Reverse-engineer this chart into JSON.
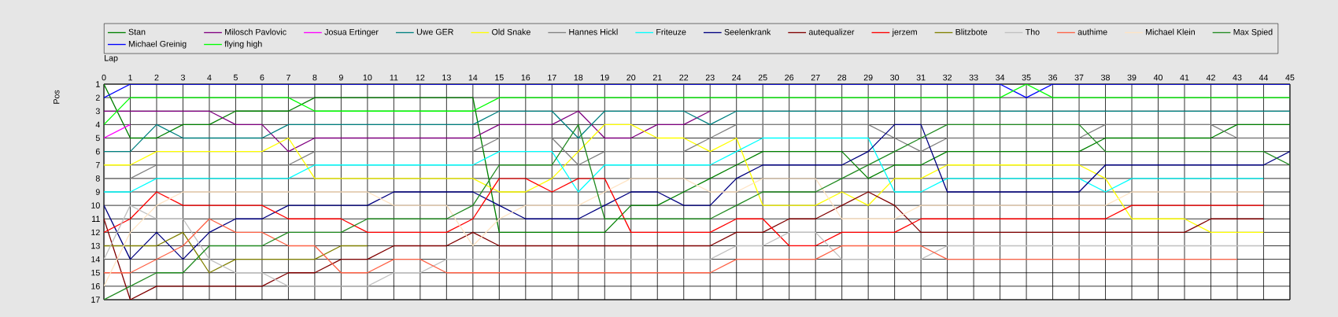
{
  "chart_data": {
    "type": "line",
    "xlabel": "Lap",
    "ylabel": "Pos",
    "x": [
      0,
      1,
      2,
      3,
      4,
      5,
      6,
      7,
      8,
      9,
      10,
      11,
      12,
      13,
      14,
      15,
      16,
      17,
      18,
      19,
      20,
      21,
      22,
      23,
      24,
      25,
      26,
      27,
      28,
      29,
      30,
      31,
      32,
      33,
      34,
      35,
      36,
      37,
      38,
      39,
      40,
      41,
      42,
      43,
      44,
      45
    ],
    "xlim": [
      0,
      45
    ],
    "xticks": [
      0,
      1,
      2,
      3,
      4,
      5,
      6,
      7,
      8,
      9,
      10,
      11,
      12,
      13,
      14,
      15,
      16,
      17,
      18,
      19,
      20,
      21,
      22,
      23,
      24,
      25,
      26,
      27,
      28,
      29,
      30,
      31,
      32,
      33,
      34,
      35,
      36,
      37,
      38,
      39,
      40,
      41,
      42,
      43,
      44,
      45
    ],
    "ylim": [
      17,
      1
    ],
    "yticks": [
      1,
      2,
      3,
      4,
      5,
      6,
      7,
      8,
      9,
      10,
      11,
      12,
      13,
      14,
      15,
      16,
      17
    ],
    "grid": true,
    "legend": "top",
    "series": [
      {
        "name": "Stan",
        "color": "#008000",
        "values": [
          1,
          5,
          5,
          4,
          4,
          3,
          3,
          3,
          2,
          2,
          2,
          2,
          2,
          2,
          2,
          12,
          12,
          12,
          12,
          12,
          10,
          10,
          9,
          8,
          7,
          6,
          6,
          6,
          6,
          8,
          7,
          7,
          6,
          6,
          6,
          6,
          6,
          6,
          5,
          5,
          5,
          5,
          5,
          4,
          4,
          4
        ]
      },
      {
        "name": "Milosch Pavlovic",
        "color": "#800080",
        "values": [
          3,
          3,
          3,
          3,
          3,
          4,
          4,
          6,
          5,
          5,
          5,
          5,
          5,
          5,
          5,
          4,
          4,
          4,
          3,
          5,
          5,
          4,
          4,
          3,
          null,
          null,
          null,
          null,
          null,
          null,
          null,
          null,
          null,
          null,
          null,
          null,
          null,
          null,
          null,
          null,
          null,
          null,
          null,
          null,
          null,
          null
        ]
      },
      {
        "name": "Josua Ertinger",
        "color": "#ff00ff",
        "values": [
          5,
          4,
          null,
          null,
          null,
          null,
          null,
          null,
          null,
          null,
          null,
          null,
          null,
          null,
          null,
          null,
          null,
          null,
          null,
          null,
          null,
          null,
          null,
          null,
          null,
          null,
          null,
          null,
          null,
          null,
          null,
          null,
          null,
          null,
          null,
          null,
          null,
          null,
          null,
          null,
          null,
          null,
          null,
          null,
          null,
          null
        ]
      },
      {
        "name": "Uwe GER",
        "color": "#008080",
        "values": [
          6,
          6,
          4,
          5,
          5,
          5,
          5,
          4,
          4,
          4,
          4,
          4,
          4,
          4,
          4,
          3,
          3,
          3,
          5,
          3,
          3,
          3,
          3,
          4,
          3,
          3,
          3,
          3,
          3,
          3,
          3,
          3,
          3,
          3,
          3,
          3,
          3,
          3,
          3,
          3,
          3,
          3,
          3,
          3,
          3,
          3
        ]
      },
      {
        "name": "Old Snake",
        "color": "#ffff00",
        "values": [
          7,
          7,
          6,
          6,
          6,
          6,
          6,
          5,
          8,
          8,
          8,
          8,
          8,
          8,
          8,
          9,
          9,
          8,
          6,
          4,
          4,
          5,
          5,
          6,
          5,
          10,
          10,
          10,
          9,
          10,
          8,
          8,
          7,
          7,
          7,
          7,
          7,
          7,
          8,
          11,
          11,
          11,
          12,
          12,
          12,
          null
        ]
      },
      {
        "name": "Hannes Hickl",
        "color": "#808080",
        "values": [
          8,
          8,
          7,
          7,
          7,
          7,
          7,
          7,
          6,
          6,
          6,
          6,
          6,
          6,
          6,
          5,
          5,
          5,
          7,
          6,
          6,
          6,
          6,
          5,
          4,
          4,
          4,
          4,
          4,
          4,
          5,
          6,
          5,
          5,
          5,
          5,
          5,
          5,
          4,
          4,
          4,
          4,
          4,
          5,
          5,
          5
        ]
      },
      {
        "name": "Friteuze",
        "color": "#00ffff",
        "values": [
          9,
          9,
          8,
          8,
          8,
          8,
          8,
          8,
          7,
          7,
          7,
          7,
          7,
          7,
          7,
          6,
          6,
          6,
          9,
          7,
          7,
          7,
          7,
          7,
          6,
          5,
          5,
          5,
          5,
          5,
          9,
          9,
          8,
          8,
          8,
          8,
          8,
          8,
          9,
          8,
          8,
          8,
          8,
          8,
          8,
          null
        ]
      },
      {
        "name": "Seelenkrank",
        "color": "#000080",
        "values": [
          10,
          14,
          12,
          14,
          12,
          11,
          11,
          10,
          10,
          10,
          10,
          9,
          9,
          9,
          9,
          10,
          11,
          11,
          11,
          10,
          9,
          9,
          10,
          10,
          8,
          7,
          7,
          7,
          7,
          6,
          4,
          4,
          9,
          9,
          9,
          9,
          9,
          9,
          7,
          7,
          7,
          7,
          7,
          7,
          7,
          6
        ]
      },
      {
        "name": "autequalizer",
        "color": "#800000",
        "values": [
          11,
          17,
          16,
          16,
          16,
          16,
          16,
          15,
          15,
          14,
          14,
          13,
          13,
          13,
          12,
          13,
          13,
          13,
          13,
          13,
          13,
          13,
          13,
          13,
          12,
          12,
          11,
          11,
          10,
          9,
          10,
          12,
          12,
          12,
          12,
          12,
          12,
          12,
          12,
          12,
          12,
          12,
          11,
          11,
          11,
          null
        ]
      },
      {
        "name": "jerzem",
        "color": "#ff0000",
        "values": [
          12,
          11,
          9,
          10,
          10,
          10,
          10,
          11,
          11,
          11,
          12,
          12,
          12,
          12,
          11,
          8,
          8,
          9,
          8,
          8,
          12,
          12,
          12,
          12,
          11,
          11,
          13,
          13,
          12,
          12,
          12,
          11,
          11,
          11,
          11,
          11,
          11,
          11,
          11,
          10,
          10,
          10,
          10,
          10,
          10,
          null
        ]
      },
      {
        "name": "Blitzbote",
        "color": "#808000",
        "values": [
          13,
          13,
          13,
          12,
          15,
          14,
          14,
          14,
          14,
          13,
          13,
          null,
          null,
          null,
          null,
          null,
          null,
          null,
          null,
          null,
          null,
          null,
          null,
          null,
          null,
          null,
          null,
          null,
          null,
          null,
          null,
          null,
          null,
          null,
          null,
          null,
          null,
          null,
          null,
          null,
          null,
          null,
          null,
          null,
          null,
          null
        ]
      },
      {
        "name": "Tho",
        "color": "#c0c0c0",
        "values": [
          14,
          10,
          11,
          11,
          14,
          15,
          15,
          16,
          16,
          16,
          16,
          15,
          15,
          14,
          14,
          14,
          14,
          14,
          14,
          14,
          14,
          14,
          14,
          14,
          13,
          13,
          12,
          12,
          14,
          14,
          14,
          14,
          13,
          13,
          13,
          13,
          13,
          13,
          13,
          13,
          13,
          13,
          13,
          13,
          13,
          null
        ]
      },
      {
        "name": "authime",
        "color": "#ff6347",
        "values": [
          15,
          15,
          14,
          13,
          11,
          12,
          12,
          13,
          13,
          15,
          15,
          14,
          14,
          15,
          15,
          15,
          15,
          15,
          15,
          15,
          15,
          15,
          15,
          15,
          14,
          14,
          14,
          14,
          13,
          13,
          13,
          13,
          14,
          14,
          14,
          14,
          14,
          14,
          14,
          14,
          14,
          14,
          14,
          14,
          null,
          null
        ]
      },
      {
        "name": "Michael Klein",
        "color": "#ffe4c4",
        "values": [
          16,
          12,
          10,
          9,
          9,
          9,
          9,
          9,
          9,
          9,
          9,
          10,
          10,
          10,
          13,
          11,
          10,
          10,
          10,
          9,
          8,
          8,
          8,
          9,
          9,
          8,
          8,
          8,
          11,
          11,
          11,
          10,
          10,
          10,
          10,
          10,
          10,
          10,
          10,
          9,
          9,
          9,
          9,
          9,
          9,
          null
        ]
      },
      {
        "name": "Max Spied",
        "color": "#228b22",
        "values": [
          17,
          16,
          15,
          15,
          13,
          13,
          13,
          12,
          12,
          12,
          11,
          11,
          11,
          11,
          10,
          7,
          7,
          7,
          4,
          11,
          11,
          11,
          11,
          11,
          10,
          9,
          9,
          9,
          8,
          7,
          6,
          5,
          4,
          4,
          4,
          4,
          4,
          4,
          6,
          6,
          6,
          6,
          6,
          6,
          6,
          7
        ]
      },
      {
        "name": "Michael Greinig",
        "color": "#0000ff",
        "values": [
          2,
          1,
          1,
          1,
          1,
          1,
          1,
          1,
          1,
          1,
          1,
          1,
          1,
          1,
          1,
          1,
          1,
          1,
          1,
          1,
          1,
          1,
          1,
          1,
          1,
          1,
          1,
          1,
          1,
          1,
          1,
          1,
          1,
          1,
          1,
          2,
          1,
          1,
          1,
          1,
          1,
          1,
          1,
          1,
          1,
          1
        ]
      },
      {
        "name": "flying high",
        "color": "#00ff00",
        "values": [
          4,
          2,
          2,
          2,
          2,
          2,
          2,
          2,
          3,
          3,
          3,
          3,
          3,
          3,
          3,
          2,
          2,
          2,
          2,
          2,
          2,
          2,
          2,
          2,
          2,
          2,
          2,
          2,
          2,
          2,
          2,
          2,
          2,
          2,
          2,
          1,
          2,
          2,
          2,
          2,
          2,
          2,
          2,
          2,
          2,
          2
        ]
      }
    ]
  }
}
